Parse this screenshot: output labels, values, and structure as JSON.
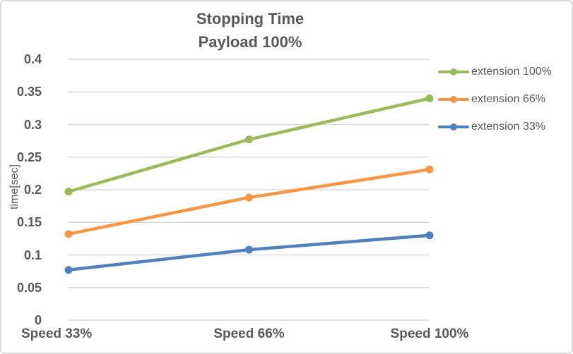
{
  "chart_data": {
    "type": "line",
    "title": "Stopping Time",
    "subtitle": "Payload 100%",
    "ylabel": "time[sec]",
    "xlabel": "",
    "categories": [
      "Speed 33%",
      "Speed 66%",
      "Speed 100%"
    ],
    "series": [
      {
        "name": "extension 100%",
        "color": "#9BBB59",
        "values": [
          0.197,
          0.277,
          0.34
        ]
      },
      {
        "name": "extension 66%",
        "color": "#F79646",
        "values": [
          0.132,
          0.188,
          0.231
        ]
      },
      {
        "name": "extension 33%",
        "color": "#4F81BD",
        "values": [
          0.077,
          0.108,
          0.13
        ]
      }
    ],
    "ylim": [
      0,
      0.4
    ],
    "ytick_step": 0.05,
    "yticks": [
      "0.4",
      "0.35",
      "0.3",
      "0.25",
      "0.2",
      "0.15",
      "0.1",
      "0.05",
      "0"
    ],
    "grid": true,
    "legend_position": "right"
  },
  "colors": {
    "grid": "#D9D9D9",
    "text": "#595959",
    "border": "#D9D9D9",
    "background": "#FFFFFF"
  }
}
